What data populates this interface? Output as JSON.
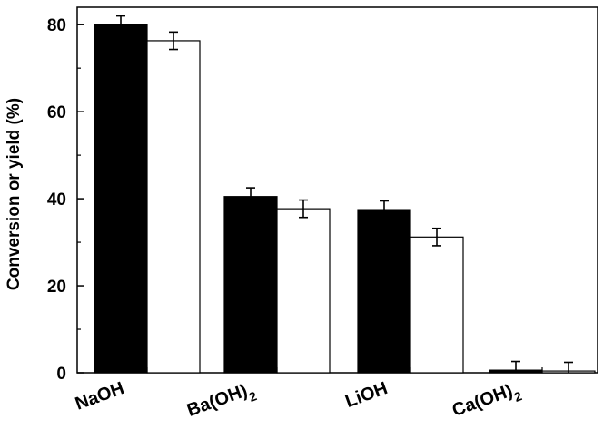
{
  "chart_data": {
    "type": "bar",
    "categories": [
      "NaOH",
      "Ba(OH)",
      "LiOH",
      "Ca(OH)"
    ],
    "category_subscripts": [
      "",
      "2",
      "",
      "2"
    ],
    "series": [
      {
        "color": "#000000",
        "values": [
          80.0,
          40.5,
          37.5,
          0.6
        ],
        "errors": [
          2.0,
          2.0,
          2.0,
          2.0
        ]
      },
      {
        "color": "#ffffff",
        "values": [
          76.3,
          37.7,
          31.2,
          0.4
        ],
        "errors": [
          2.0,
          2.0,
          2.0,
          2.0
        ]
      }
    ],
    "ylabel": "Conversion or yield (%)",
    "xlabel": "",
    "ylim": [
      0,
      84
    ],
    "yticks": [
      0,
      20,
      40,
      60,
      80
    ],
    "yticks_minor": [
      10,
      30,
      50,
      70
    ],
    "grid": false,
    "legend": "none"
  }
}
